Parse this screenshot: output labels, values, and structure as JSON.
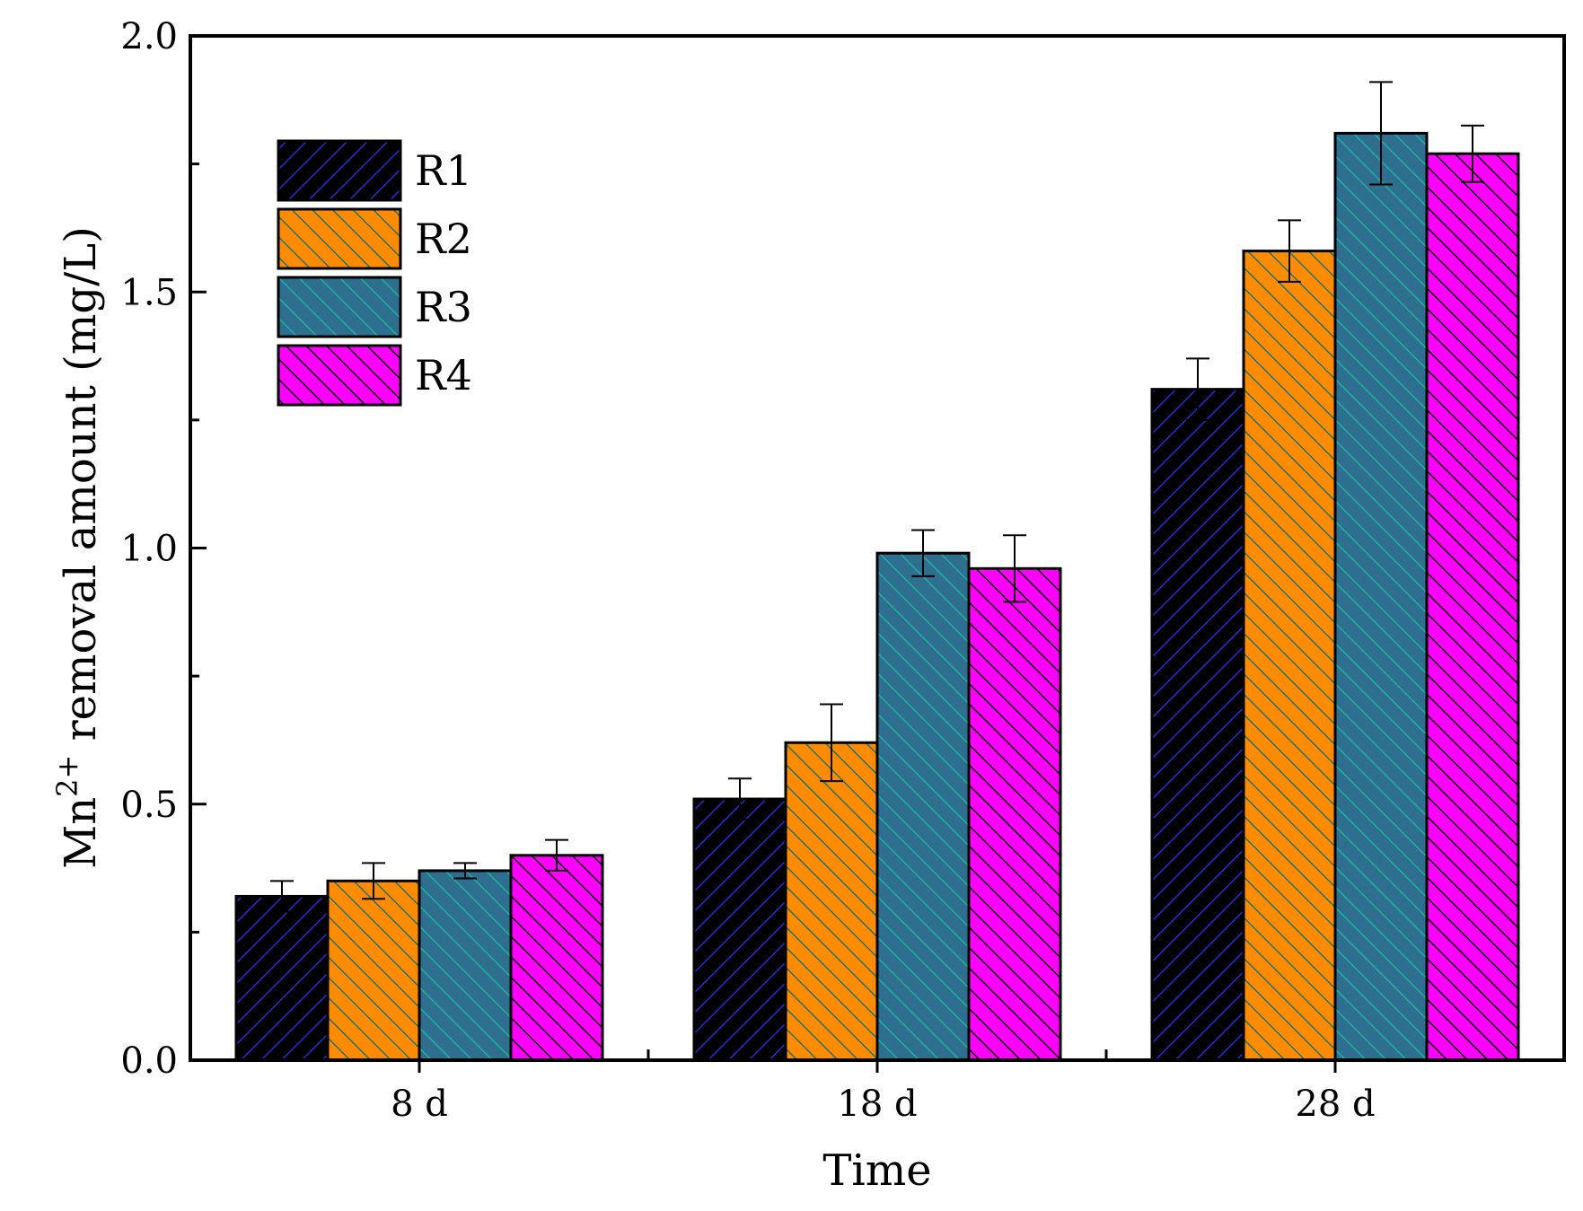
{
  "chart_data": {
    "type": "bar",
    "title": "",
    "xlabel": "Time",
    "ylabel": {
      "prefix": "Mn",
      "superscript": "2+",
      "suffix": " removal amount (mg/L)"
    },
    "categories": [
      "8 d",
      "18 d",
      "28 d"
    ],
    "ylim": [
      0,
      2.0
    ],
    "yticks": [
      {
        "value": 0.0,
        "label": "0.0"
      },
      {
        "value": 0.5,
        "label": "0.5"
      },
      {
        "value": 1.0,
        "label": "1.0"
      },
      {
        "value": 1.5,
        "label": "1.5"
      },
      {
        "value": 2.0,
        "label": "2.0"
      }
    ],
    "y_minor_ticks": [
      0.25,
      0.75,
      1.25,
      1.75
    ],
    "grid": false,
    "legend_position": "top-left",
    "series": [
      {
        "name": "R1",
        "color": "#000000",
        "hatch_color": "#2a2ad8",
        "hatch": "forward",
        "values": [
          0.32,
          0.51,
          1.31
        ],
        "errors": [
          0.03,
          0.04,
          0.06
        ]
      },
      {
        "name": "R2",
        "color": "#ff8c00",
        "hatch_color": "#2a7070",
        "hatch": "backward",
        "values": [
          0.35,
          0.62,
          1.58
        ],
        "errors": [
          0.035,
          0.075,
          0.06
        ]
      },
      {
        "name": "R3",
        "color": "#2e6e8e",
        "hatch_color": "#20b0a0",
        "hatch": "backward",
        "values": [
          0.37,
          0.99,
          1.81
        ],
        "errors": [
          0.015,
          0.045,
          0.1
        ]
      },
      {
        "name": "R4",
        "color": "#ff00ff",
        "hatch_color": "#000000",
        "hatch": "backward",
        "values": [
          0.4,
          0.96,
          1.77
        ],
        "errors": [
          0.03,
          0.065,
          0.055
        ]
      }
    ]
  }
}
